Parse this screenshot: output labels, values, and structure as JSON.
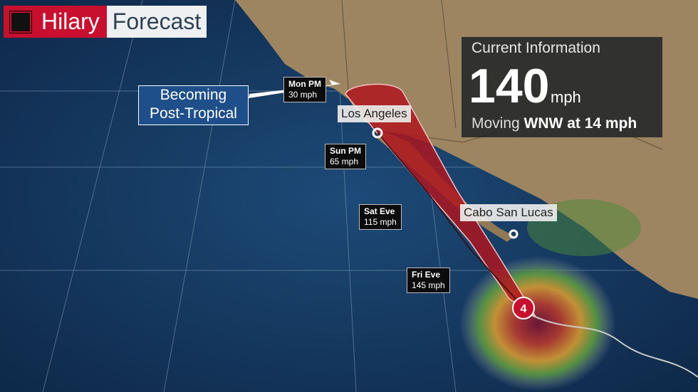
{
  "title": {
    "storm_name": "Hilary",
    "label": "Forecast"
  },
  "current_info": {
    "heading": "Current Information",
    "wind_speed": "140",
    "wind_unit": "mph",
    "moving_prefix": "Moving",
    "moving_value": "WNW at 14 mph"
  },
  "callout": {
    "line1": "Becoming",
    "line2": "Post-Tropical"
  },
  "forecast_points": [
    {
      "time": "Mon PM",
      "wind": "30 mph"
    },
    {
      "time": "Sun PM",
      "wind": "65 mph"
    },
    {
      "time": "Sat Eve",
      "wind": "115 mph"
    },
    {
      "time": "Fri Eve",
      "wind": "145 mph"
    }
  ],
  "cities": [
    "Los Angeles",
    "Cabo San Lucas"
  ],
  "storm_category": "4",
  "colors": {
    "brand_red": "#c8102e",
    "cone_red": "#b0141c",
    "ocean": "#123456",
    "land": "#9c8560",
    "callout_blue": "#1f4f8a"
  }
}
